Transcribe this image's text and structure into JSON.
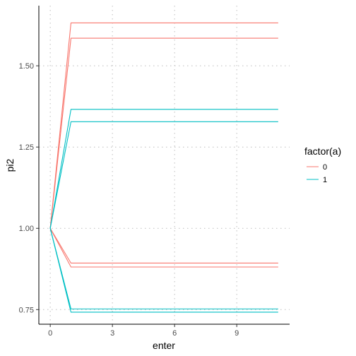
{
  "chart_data": {
    "type": "line",
    "xlabel": "enter",
    "ylabel": "pi2",
    "xlim": [
      -0.55,
      11.55
    ],
    "ylim": [
      0.705,
      1.685
    ],
    "x_ticks": [
      0,
      3,
      6,
      9
    ],
    "x_tick_labels": [
      "0",
      "3",
      "6",
      "9"
    ],
    "y_ticks": [
      0.75,
      1.0,
      1.25,
      1.5
    ],
    "y_tick_labels": [
      "0.75",
      "1.00",
      "1.25",
      "1.50"
    ],
    "grid": "dotted major gridlines",
    "legend": {
      "title": "factor(a)",
      "position": "right",
      "entries": [
        {
          "label": "0",
          "color": "#F8766D"
        },
        {
          "label": "1",
          "color": "#00BFC4"
        }
      ]
    },
    "x": [
      0,
      1,
      11
    ],
    "series": [
      {
        "group": "0",
        "color": "#F8766D",
        "values": [
          1.0,
          1.632,
          1.632
        ]
      },
      {
        "group": "0",
        "color": "#F8766D",
        "values": [
          1.0,
          1.585,
          1.585
        ]
      },
      {
        "group": "0",
        "color": "#F8766D",
        "values": [
          1.0,
          0.893,
          0.893
        ]
      },
      {
        "group": "0",
        "color": "#F8766D",
        "values": [
          1.0,
          0.881,
          0.881
        ]
      },
      {
        "group": "1",
        "color": "#00BFC4",
        "values": [
          1.0,
          1.366,
          1.366
        ]
      },
      {
        "group": "1",
        "color": "#00BFC4",
        "values": [
          1.0,
          1.328,
          1.328
        ]
      },
      {
        "group": "1",
        "color": "#00BFC4",
        "values": [
          1.0,
          0.752,
          0.752
        ]
      },
      {
        "group": "1",
        "color": "#00BFC4",
        "values": [
          1.0,
          0.742,
          0.742
        ]
      }
    ]
  }
}
